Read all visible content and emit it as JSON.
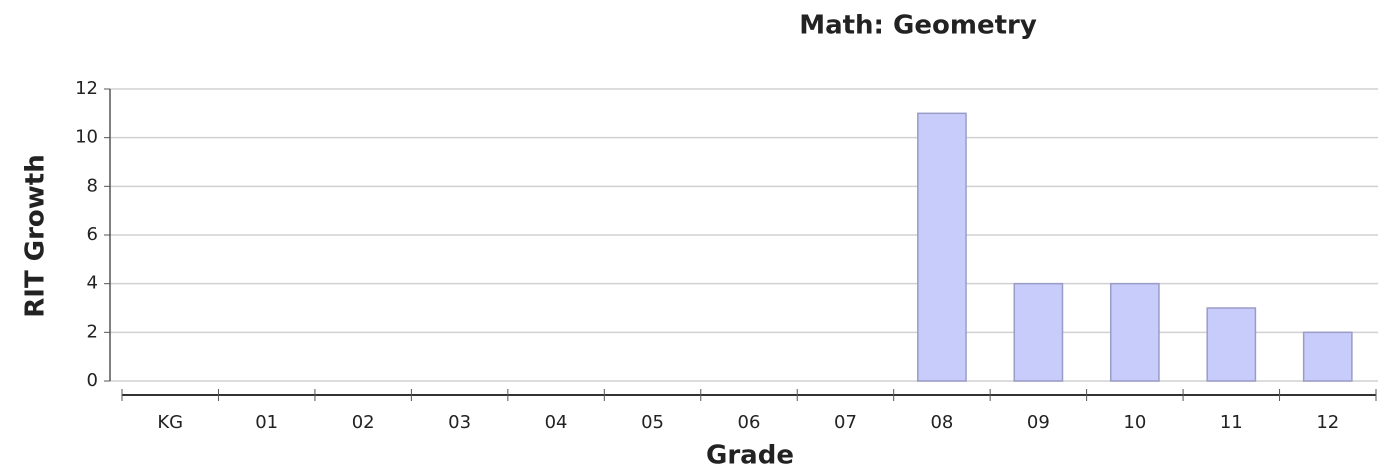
{
  "chart_data": {
    "type": "bar",
    "title": "Math: Geometry",
    "x_label": "Grade",
    "y_label": "RIT Growth",
    "categories": [
      "KG",
      "01",
      "02",
      "03",
      "04",
      "05",
      "06",
      "07",
      "08",
      "09",
      "10",
      "11",
      "12"
    ],
    "values": [
      null,
      null,
      null,
      null,
      null,
      null,
      null,
      null,
      11,
      4,
      4,
      3,
      2
    ],
    "color": "#c8ccfa",
    "ylim": [
      0,
      12
    ],
    "yticks": [
      0,
      2,
      4,
      6,
      8,
      10,
      12
    ],
    "grid": true
  }
}
